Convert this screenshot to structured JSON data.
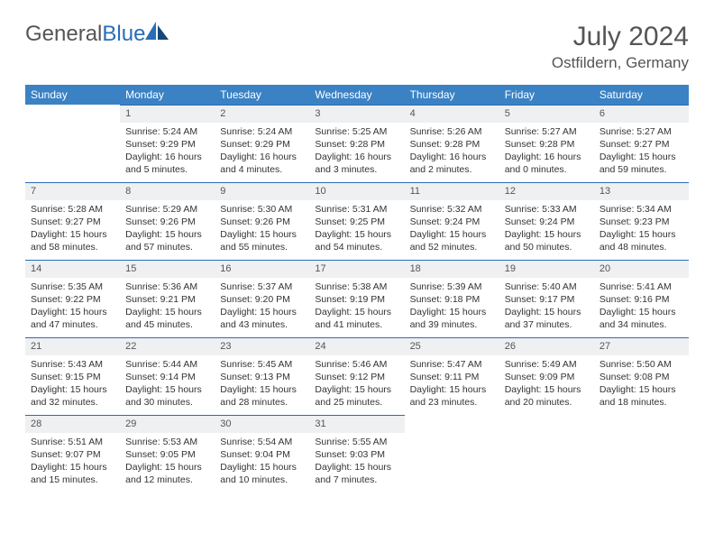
{
  "brand": {
    "general": "General",
    "blue": "Blue"
  },
  "title": {
    "month": "July 2024",
    "location": "Ostfildern, Germany"
  },
  "colors": {
    "header_bg": "#3b82c4",
    "accent": "#2a6db8",
    "daynum_bg": "#eef0f1",
    "text": "#333333",
    "muted": "#555555",
    "background": "#ffffff"
  },
  "dayNames": [
    "Sunday",
    "Monday",
    "Tuesday",
    "Wednesday",
    "Thursday",
    "Friday",
    "Saturday"
  ],
  "weeks": [
    [
      null,
      {
        "n": 1,
        "r": "5:24 AM",
        "s": "9:29 PM",
        "d": "16 hours and 5 minutes."
      },
      {
        "n": 2,
        "r": "5:24 AM",
        "s": "9:29 PM",
        "d": "16 hours and 4 minutes."
      },
      {
        "n": 3,
        "r": "5:25 AM",
        "s": "9:28 PM",
        "d": "16 hours and 3 minutes."
      },
      {
        "n": 4,
        "r": "5:26 AM",
        "s": "9:28 PM",
        "d": "16 hours and 2 minutes."
      },
      {
        "n": 5,
        "r": "5:27 AM",
        "s": "9:28 PM",
        "d": "16 hours and 0 minutes."
      },
      {
        "n": 6,
        "r": "5:27 AM",
        "s": "9:27 PM",
        "d": "15 hours and 59 minutes."
      }
    ],
    [
      {
        "n": 7,
        "r": "5:28 AM",
        "s": "9:27 PM",
        "d": "15 hours and 58 minutes."
      },
      {
        "n": 8,
        "r": "5:29 AM",
        "s": "9:26 PM",
        "d": "15 hours and 57 minutes."
      },
      {
        "n": 9,
        "r": "5:30 AM",
        "s": "9:26 PM",
        "d": "15 hours and 55 minutes."
      },
      {
        "n": 10,
        "r": "5:31 AM",
        "s": "9:25 PM",
        "d": "15 hours and 54 minutes."
      },
      {
        "n": 11,
        "r": "5:32 AM",
        "s": "9:24 PM",
        "d": "15 hours and 52 minutes."
      },
      {
        "n": 12,
        "r": "5:33 AM",
        "s": "9:24 PM",
        "d": "15 hours and 50 minutes."
      },
      {
        "n": 13,
        "r": "5:34 AM",
        "s": "9:23 PM",
        "d": "15 hours and 48 minutes."
      }
    ],
    [
      {
        "n": 14,
        "r": "5:35 AM",
        "s": "9:22 PM",
        "d": "15 hours and 47 minutes."
      },
      {
        "n": 15,
        "r": "5:36 AM",
        "s": "9:21 PM",
        "d": "15 hours and 45 minutes."
      },
      {
        "n": 16,
        "r": "5:37 AM",
        "s": "9:20 PM",
        "d": "15 hours and 43 minutes."
      },
      {
        "n": 17,
        "r": "5:38 AM",
        "s": "9:19 PM",
        "d": "15 hours and 41 minutes."
      },
      {
        "n": 18,
        "r": "5:39 AM",
        "s": "9:18 PM",
        "d": "15 hours and 39 minutes."
      },
      {
        "n": 19,
        "r": "5:40 AM",
        "s": "9:17 PM",
        "d": "15 hours and 37 minutes."
      },
      {
        "n": 20,
        "r": "5:41 AM",
        "s": "9:16 PM",
        "d": "15 hours and 34 minutes."
      }
    ],
    [
      {
        "n": 21,
        "r": "5:43 AM",
        "s": "9:15 PM",
        "d": "15 hours and 32 minutes."
      },
      {
        "n": 22,
        "r": "5:44 AM",
        "s": "9:14 PM",
        "d": "15 hours and 30 minutes."
      },
      {
        "n": 23,
        "r": "5:45 AM",
        "s": "9:13 PM",
        "d": "15 hours and 28 minutes."
      },
      {
        "n": 24,
        "r": "5:46 AM",
        "s": "9:12 PM",
        "d": "15 hours and 25 minutes."
      },
      {
        "n": 25,
        "r": "5:47 AM",
        "s": "9:11 PM",
        "d": "15 hours and 23 minutes."
      },
      {
        "n": 26,
        "r": "5:49 AM",
        "s": "9:09 PM",
        "d": "15 hours and 20 minutes."
      },
      {
        "n": 27,
        "r": "5:50 AM",
        "s": "9:08 PM",
        "d": "15 hours and 18 minutes."
      }
    ],
    [
      {
        "n": 28,
        "r": "5:51 AM",
        "s": "9:07 PM",
        "d": "15 hours and 15 minutes."
      },
      {
        "n": 29,
        "r": "5:53 AM",
        "s": "9:05 PM",
        "d": "15 hours and 12 minutes."
      },
      {
        "n": 30,
        "r": "5:54 AM",
        "s": "9:04 PM",
        "d": "15 hours and 10 minutes."
      },
      {
        "n": 31,
        "r": "5:55 AM",
        "s": "9:03 PM",
        "d": "15 hours and 7 minutes."
      },
      null,
      null,
      null
    ]
  ],
  "labels": {
    "sunrise": "Sunrise:",
    "sunset": "Sunset:",
    "daylight": "Daylight:"
  }
}
